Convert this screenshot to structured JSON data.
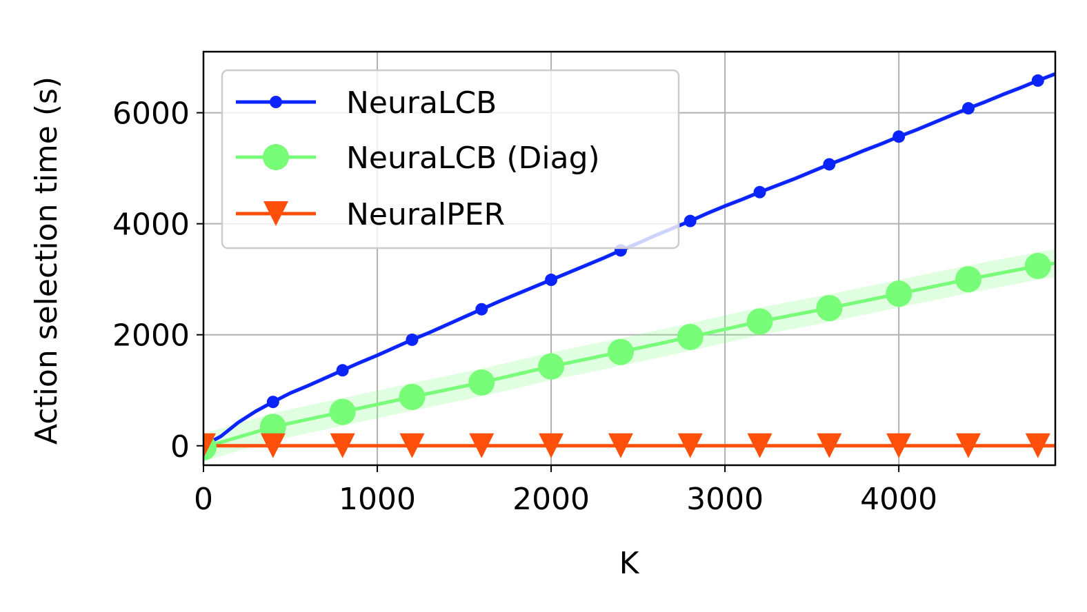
{
  "chart_data": {
    "type": "line",
    "xlabel": "K",
    "ylabel": "Action selection time (s)",
    "xlim": [
      0,
      4900
    ],
    "ylim": [
      -350,
      7100
    ],
    "xticks": [
      0,
      1000,
      2000,
      3000,
      4000
    ],
    "yticks": [
      0,
      2000,
      4000,
      6000
    ],
    "xtick_labels": [
      "0",
      "1000",
      "2000",
      "3000",
      "4000"
    ],
    "ytick_labels": [
      "0",
      "2000",
      "4000",
      "6000"
    ],
    "grid": true,
    "legend_position": "upper-left",
    "series": [
      {
        "name": "NeuraLCB",
        "color": "#0b24fb",
        "marker": "point",
        "band": 40,
        "x": [
          0,
          100,
          200,
          300,
          400,
          500,
          600,
          700,
          800,
          900,
          1000,
          1100,
          1200,
          1300,
          1400,
          1500,
          1600,
          1700,
          1800,
          1900,
          2000,
          2100,
          2200,
          2300,
          2400,
          2500,
          2600,
          2700,
          2800,
          2900,
          3000,
          3100,
          3200,
          3300,
          3400,
          3500,
          3600,
          3700,
          3800,
          3900,
          4000,
          4100,
          4200,
          4300,
          4400,
          4500,
          4600,
          4700,
          4800,
          4900
        ],
        "values": [
          0,
          170,
          420,
          620,
          790,
          950,
          1080,
          1220,
          1360,
          1500,
          1630,
          1770,
          1910,
          2040,
          2180,
          2320,
          2460,
          2600,
          2730,
          2860,
          2990,
          3120,
          3250,
          3380,
          3520,
          3650,
          3790,
          3920,
          4050,
          4190,
          4320,
          4440,
          4570,
          4690,
          4810,
          4940,
          5070,
          5190,
          5320,
          5440,
          5570,
          5690,
          5820,
          5950,
          6080,
          6200,
          6330,
          6450,
          6580,
          6700
        ],
        "marker_x": [
          400,
          800,
          1200,
          1600,
          2000,
          2400,
          2800,
          3200,
          3600,
          4000,
          4400,
          4800
        ],
        "marker_values": [
          790,
          1360,
          1910,
          2460,
          2990,
          3520,
          4050,
          4570,
          5070,
          5570,
          6080,
          6580
        ]
      },
      {
        "name": "NeuraLCB (Diag)",
        "color": "#77fd77",
        "marker": "circle",
        "band": 250,
        "x": [
          0,
          400,
          800,
          1200,
          1600,
          2000,
          2400,
          2800,
          3200,
          3600,
          4000,
          4400,
          4800,
          4900
        ],
        "values": [
          -30,
          340,
          610,
          880,
          1140,
          1430,
          1690,
          1960,
          2240,
          2480,
          2740,
          3000,
          3240,
          3290
        ],
        "marker_x": [
          0,
          400,
          800,
          1200,
          1600,
          2000,
          2400,
          2800,
          3200,
          3600,
          4000,
          4400,
          4800
        ],
        "marker_values": [
          -30,
          340,
          610,
          880,
          1140,
          1430,
          1690,
          1960,
          2240,
          2480,
          2740,
          3000,
          3240
        ]
      },
      {
        "name": "NeuralPER",
        "color": "#fe4f0b",
        "marker": "triangle-down",
        "band": 0,
        "x": [
          0,
          4900
        ],
        "values": [
          0,
          0
        ],
        "marker_x": [
          0,
          400,
          800,
          1200,
          1600,
          2000,
          2400,
          2800,
          3200,
          3600,
          4000,
          4400,
          4800
        ],
        "marker_values": [
          0,
          0,
          0,
          0,
          0,
          0,
          0,
          0,
          0,
          0,
          0,
          0,
          0
        ]
      }
    ]
  }
}
